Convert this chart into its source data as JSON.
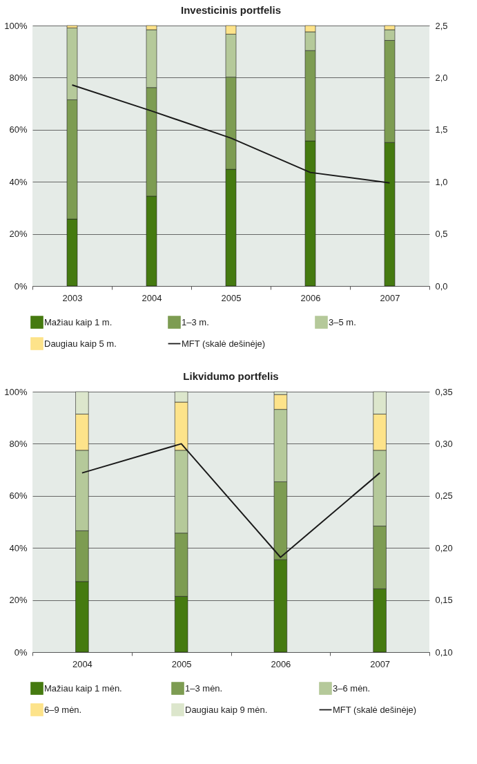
{
  "chart_data": [
    {
      "type": "bar",
      "title": "Investicinis portfelis",
      "stacked": true,
      "grid": "y",
      "legend": "bottom",
      "categories": [
        "2003",
        "2004",
        "2005",
        "2006",
        "2007"
      ],
      "series": [
        {
          "name": "Mažiau kaip 1 m.",
          "color": "#457a10",
          "values": [
            25.7,
            34.5,
            44.8,
            55.7,
            55.1
          ]
        },
        {
          "name": "1–3 m.",
          "color": "#7d9c52",
          "values": [
            45.8,
            41.7,
            35.4,
            34.7,
            39.2
          ]
        },
        {
          "name": "3–5 m.",
          "color": "#b5c99a",
          "values": [
            27.6,
            22.2,
            16.5,
            7.2,
            4.1
          ]
        },
        {
          "name": "Daugiau kaip 5 m.",
          "color": "#fde38a",
          "values": [
            0.9,
            1.6,
            3.3,
            2.4,
            1.6
          ]
        },
        {
          "name": "MFT (skalė dešinėje)",
          "type": "line",
          "axis": "y2",
          "color": "#1a1a1a",
          "values": [
            1.93,
            1.68,
            1.42,
            1.09,
            0.99
          ]
        }
      ],
      "ylim": [
        0,
        100
      ],
      "yticks": [
        {
          "value": 0,
          "label": "0%"
        },
        {
          "value": 20,
          "label": "20%"
        },
        {
          "value": 40,
          "label": "40%"
        },
        {
          "value": 60,
          "label": "60%"
        },
        {
          "value": 80,
          "label": "80%"
        },
        {
          "value": 100,
          "label": "100%"
        }
      ],
      "y2lim": [
        0,
        2.5
      ],
      "y2ticks": [
        {
          "value": 0,
          "label": "0,0"
        },
        {
          "value": 0.5,
          "label": "0,5"
        },
        {
          "value": 1,
          "label": "1,0"
        },
        {
          "value": 1.5,
          "label": "1,5"
        },
        {
          "value": 2,
          "label": "2,0"
        },
        {
          "value": 2.5,
          "label": "2,5"
        }
      ]
    },
    {
      "type": "bar",
      "title": "Likvidumo portfelis",
      "stacked": true,
      "grid": "y",
      "legend": "bottom",
      "categories": [
        "2004",
        "2005",
        "2006",
        "2007"
      ],
      "series": [
        {
          "name": "Mažiau kaip 1 mėn.",
          "color": "#457a10",
          "values": [
            27.1,
            21.4,
            35.5,
            24.3
          ]
        },
        {
          "name": "1–3 mėn.",
          "color": "#7d9c52",
          "values": [
            19.5,
            24.3,
            29.9,
            24.1
          ]
        },
        {
          "name": "3–6 mėn.",
          "color": "#b5c99a",
          "values": [
            30.9,
            31.8,
            27.8,
            29.1
          ]
        },
        {
          "name": "6–9 mėn.",
          "color": "#fde38a",
          "values": [
            13.9,
            18.5,
            5.7,
            13.9
          ]
        },
        {
          "name": "Daugiau kaip 9 mėn.",
          "color": "#dce6cc",
          "values": [
            8.6,
            4.0,
            1.1,
            8.6
          ]
        },
        {
          "name": "MFT (skalė dešinėje)",
          "type": "line",
          "axis": "y2",
          "color": "#1a1a1a",
          "values": [
            0.272,
            0.3,
            0.191,
            0.272
          ]
        }
      ],
      "ylim": [
        0,
        100
      ],
      "yticks": [
        {
          "value": 0,
          "label": "0%"
        },
        {
          "value": 20,
          "label": "20%"
        },
        {
          "value": 40,
          "label": "40%"
        },
        {
          "value": 60,
          "label": "60%"
        },
        {
          "value": 80,
          "label": "80%"
        },
        {
          "value": 100,
          "label": "100%"
        }
      ],
      "y2lim": [
        0.1,
        0.35
      ],
      "y2ticks": [
        {
          "value": 0.1,
          "label": "0,10"
        },
        {
          "value": 0.15,
          "label": "0,15"
        },
        {
          "value": 0.2,
          "label": "0,20"
        },
        {
          "value": 0.25,
          "label": "0,25"
        },
        {
          "value": 0.3,
          "label": "0,30"
        },
        {
          "value": 0.35,
          "label": "0,35"
        }
      ]
    }
  ]
}
